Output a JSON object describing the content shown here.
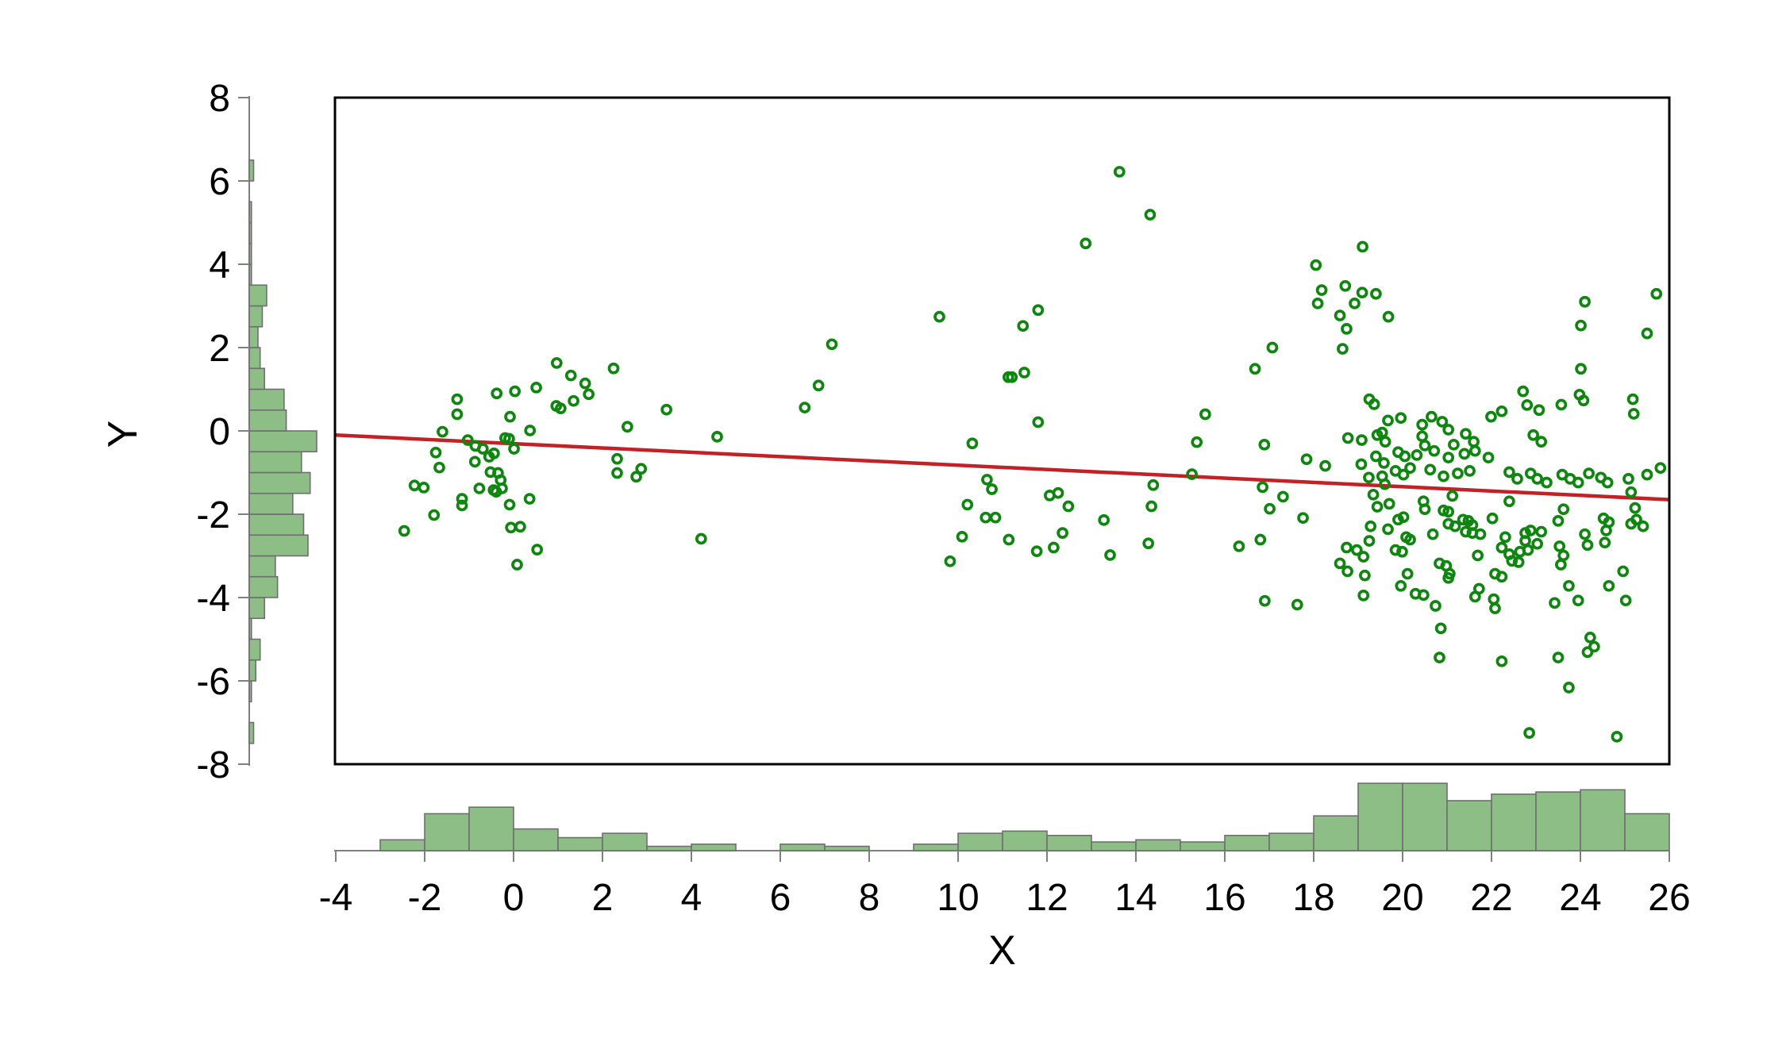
{
  "chart_data": {
    "type": "scatter",
    "subtype": "marginal_plot_with_histograms_and_fit_line",
    "title": "",
    "xlabel": "X",
    "ylabel": "Y",
    "xlim": [
      -4,
      26
    ],
    "ylim": [
      -8,
      8
    ],
    "x_ticks": [
      -4,
      -2,
      0,
      2,
      4,
      6,
      8,
      10,
      12,
      14,
      16,
      18,
      20,
      22,
      24,
      26
    ],
    "y_ticks": [
      -8,
      -6,
      -4,
      -2,
      0,
      2,
      4,
      6,
      8
    ],
    "grid": false,
    "legend": "none",
    "colors": {
      "point_stroke": "#0D870D",
      "fit_line": "#C22126",
      "hist_fill": "#8CBE86",
      "hist_edge": "#6F6F6F",
      "axis_line": "#7F7F7F",
      "plot_border": "#000000",
      "text": "#000000",
      "background": "#FFFFFF"
    },
    "fit_line": {
      "x1": -4,
      "y1": -0.1,
      "x2": 26,
      "y2": -1.65
    },
    "x_histogram": {
      "bin_width": 1,
      "bins_start": -3,
      "counts": [
        5,
        17,
        20,
        10,
        6,
        8,
        2,
        3,
        0,
        3,
        2,
        0,
        3,
        8,
        9,
        7,
        4,
        5,
        4,
        7,
        8,
        16,
        31,
        31,
        23,
        26,
        27,
        28,
        17
      ]
    },
    "y_histogram": {
      "bin_width": 0.5,
      "bins_start": -8,
      "counts": [
        0,
        2,
        0,
        1,
        3,
        5,
        1,
        7,
        13,
        12,
        27,
        25,
        20,
        28,
        24,
        31,
        17,
        16,
        7,
        5,
        4,
        6,
        8,
        1,
        1,
        1,
        1,
        0,
        2
      ]
    },
    "points": [
      [
        0.97,
        1.63
      ],
      [
        2.25,
        1.5
      ],
      [
        1.29,
        1.33
      ],
      [
        1.61,
        1.14
      ],
      [
        1.69,
        0.88
      ],
      [
        0.51,
        1.04
      ],
      [
        -0.38,
        0.9
      ],
      [
        0.03,
        0.95
      ],
      [
        0.96,
        0.6
      ],
      [
        1.06,
        0.54
      ],
      [
        1.35,
        0.72
      ],
      [
        -1.27,
        0.76
      ],
      [
        -1.27,
        0.4
      ],
      [
        3.44,
        0.51
      ],
      [
        -0.08,
        0.34
      ],
      [
        2.56,
        0.1
      ],
      [
        0.37,
        0.01
      ],
      [
        -1.6,
        -0.02
      ],
      [
        -0.19,
        -0.17
      ],
      [
        -0.1,
        -0.19
      ],
      [
        -1.03,
        -0.22
      ],
      [
        -0.86,
        -0.36
      ],
      [
        -0.69,
        -0.43
      ],
      [
        0.01,
        -0.43
      ],
      [
        -0.44,
        -0.54
      ],
      [
        -0.55,
        -0.62
      ],
      [
        -1.75,
        -0.52
      ],
      [
        -0.87,
        -0.74
      ],
      [
        2.33,
        -0.67
      ],
      [
        2.33,
        -1.01
      ],
      [
        2.87,
        -0.91
      ],
      [
        2.76,
        -1.1
      ],
      [
        -1.67,
        -0.88
      ],
      [
        -0.52,
        -0.99
      ],
      [
        -0.35,
        -1.01
      ],
      [
        -0.29,
        -1.18
      ],
      [
        -2.23,
        -1.31
      ],
      [
        -2.02,
        -1.36
      ],
      [
        -0.77,
        -1.38
      ],
      [
        -0.45,
        -1.42
      ],
      [
        -0.39,
        -1.46
      ],
      [
        -0.26,
        -1.38
      ],
      [
        -1.16,
        -1.63
      ],
      [
        -1.16,
        -1.79
      ],
      [
        0.36,
        -1.63
      ],
      [
        -0.09,
        -1.77
      ],
      [
        -1.79,
        -2.02
      ],
      [
        -2.46,
        -2.4
      ],
      [
        -0.06,
        -2.32
      ],
      [
        0.15,
        -2.3
      ],
      [
        0.53,
        -2.85
      ],
      [
        0.08,
        -3.21
      ],
      [
        9.58,
        2.74
      ],
      [
        7.16,
        2.08
      ],
      [
        6.86,
        1.09
      ],
      [
        6.55,
        0.56
      ],
      [
        4.58,
        -0.14
      ],
      [
        10.32,
        -0.3
      ],
      [
        10.65,
        -1.17
      ],
      [
        11.46,
        2.52
      ],
      [
        11.13,
        1.29
      ],
      [
        11.21,
        1.29
      ],
      [
        11.49,
        1.4
      ],
      [
        4.22,
        -2.59
      ],
      [
        10.21,
        -1.77
      ],
      [
        10.76,
        -1.4
      ],
      [
        10.62,
        -2.08
      ],
      [
        10.84,
        -2.08
      ],
      [
        10.09,
        -2.54
      ],
      [
        11.14,
        -2.61
      ],
      [
        9.82,
        -3.13
      ],
      [
        11.77,
        -2.89
      ],
      [
        13.63,
        6.22
      ],
      [
        14.32,
        5.19
      ],
      [
        12.87,
        4.5
      ],
      [
        11.8,
        2.9
      ],
      [
        18.05,
        3.98
      ],
      [
        18.18,
        3.38
      ],
      [
        18.09,
        3.06
      ],
      [
        18.71,
        3.48
      ],
      [
        19.09,
        3.32
      ],
      [
        18.92,
        3.06
      ],
      [
        18.59,
        2.77
      ],
      [
        18.74,
        2.45
      ],
      [
        18.65,
        1.97
      ],
      [
        17.07,
        2.0
      ],
      [
        16.68,
        1.49
      ],
      [
        15.56,
        0.4
      ],
      [
        11.8,
        0.21
      ],
      [
        15.37,
        -0.27
      ],
      [
        16.89,
        -0.33
      ],
      [
        18.77,
        -0.17
      ],
      [
        17.84,
        -0.68
      ],
      [
        18.26,
        -0.84
      ],
      [
        15.26,
        -1.04
      ],
      [
        14.39,
        -1.3
      ],
      [
        16.85,
        -1.35
      ],
      [
        17.01,
        -1.87
      ],
      [
        17.31,
        -1.58
      ],
      [
        12.06,
        -1.55
      ],
      [
        12.25,
        -1.49
      ],
      [
        12.48,
        -1.81
      ],
      [
        13.28,
        -2.14
      ],
      [
        12.35,
        -2.45
      ],
      [
        12.15,
        -2.8
      ],
      [
        13.42,
        -2.98
      ],
      [
        14.28,
        -2.7
      ],
      [
        14.35,
        -1.81
      ],
      [
        17.76,
        -2.09
      ],
      [
        16.32,
        -2.77
      ],
      [
        16.8,
        -2.61
      ],
      [
        16.9,
        -4.08
      ],
      [
        17.63,
        -4.17
      ],
      [
        18.59,
        -3.18
      ],
      [
        18.74,
        -2.8
      ],
      [
        18.76,
        -3.37
      ],
      [
        18.97,
        -2.86
      ],
      [
        19.12,
        -3.02
      ],
      [
        19.15,
        -3.47
      ],
      [
        19.12,
        -3.95
      ],
      [
        19.1,
        4.42
      ],
      [
        19.4,
        3.29
      ],
      [
        19.68,
        2.74
      ],
      [
        24.1,
        3.1
      ],
      [
        25.71,
        3.29
      ],
      [
        24.01,
        2.53
      ],
      [
        25.5,
        2.34
      ],
      [
        24.01,
        1.49
      ],
      [
        19.36,
        0.64
      ],
      [
        19.54,
        -0.04
      ],
      [
        22.71,
        0.95
      ],
      [
        22.8,
        0.62
      ],
      [
        23.07,
        0.5
      ],
      [
        23.57,
        0.63
      ],
      [
        23.98,
        0.87
      ],
      [
        24.07,
        0.73
      ],
      [
        25.18,
        0.76
      ],
      [
        25.2,
        0.41
      ],
      [
        21.99,
        0.34
      ],
      [
        22.23,
        0.47
      ],
      [
        19.25,
        0.76
      ],
      [
        19.67,
        0.25
      ],
      [
        19.96,
        0.31
      ],
      [
        20.44,
        0.15
      ],
      [
        20.65,
        0.34
      ],
      [
        20.89,
        0.22
      ],
      [
        21.03,
        0.03
      ],
      [
        20.44,
        -0.13
      ],
      [
        20.5,
        -0.35
      ],
      [
        19.43,
        -0.1
      ],
      [
        19.61,
        -0.26
      ],
      [
        19.08,
        -0.22
      ],
      [
        21.15,
        -0.33
      ],
      [
        21.42,
        -0.07
      ],
      [
        21.6,
        -0.26
      ],
      [
        21.63,
        -0.48
      ],
      [
        21.39,
        -0.55
      ],
      [
        21.03,
        -0.64
      ],
      [
        20.71,
        -0.48
      ],
      [
        20.32,
        -0.58
      ],
      [
        19.9,
        -0.51
      ],
      [
        20.05,
        -0.61
      ],
      [
        19.4,
        -0.61
      ],
      [
        19.58,
        -0.77
      ],
      [
        19.07,
        -0.8
      ],
      [
        19.84,
        -0.96
      ],
      [
        20.02,
        -1.05
      ],
      [
        20.17,
        -0.89
      ],
      [
        20.62,
        -0.93
      ],
      [
        20.92,
        -1.09
      ],
      [
        21.24,
        -1.02
      ],
      [
        21.51,
        -0.96
      ],
      [
        21.93,
        -0.64
      ],
      [
        22.4,
        -0.99
      ],
      [
        22.58,
        -1.15
      ],
      [
        22.88,
        -1.02
      ],
      [
        23.03,
        -1.15
      ],
      [
        23.24,
        -1.24
      ],
      [
        23.59,
        -1.05
      ],
      [
        23.77,
        -1.15
      ],
      [
        23.95,
        -1.24
      ],
      [
        24.19,
        -1.02
      ],
      [
        24.46,
        -1.12
      ],
      [
        24.61,
        -1.24
      ],
      [
        25.08,
        -1.15
      ],
      [
        25.5,
        -1.05
      ],
      [
        25.8,
        -0.89
      ],
      [
        22.94,
        -0.1
      ],
      [
        23.12,
        -0.26
      ],
      [
        19.24,
        -1.12
      ],
      [
        19.54,
        -1.09
      ],
      [
        19.6,
        -1.28
      ],
      [
        19.34,
        -1.53
      ],
      [
        19.43,
        -1.82
      ],
      [
        19.7,
        -1.75
      ],
      [
        19.28,
        -2.29
      ],
      [
        19.25,
        -2.64
      ],
      [
        19.67,
        -2.36
      ],
      [
        19.9,
        -2.13
      ],
      [
        20.02,
        -2.07
      ],
      [
        20.47,
        -1.69
      ],
      [
        20.5,
        -1.88
      ],
      [
        20.92,
        -1.91
      ],
      [
        21.03,
        -1.94
      ],
      [
        21.12,
        -1.56
      ],
      [
        21.03,
        -2.23
      ],
      [
        21.18,
        -2.29
      ],
      [
        21.36,
        -2.13
      ],
      [
        21.48,
        -2.16
      ],
      [
        21.57,
        -2.26
      ],
      [
        21.42,
        -2.42
      ],
      [
        21.57,
        -2.45
      ],
      [
        21.75,
        -2.48
      ],
      [
        22.02,
        -2.1
      ],
      [
        21.69,
        -2.99
      ],
      [
        20.68,
        -2.48
      ],
      [
        20.08,
        -2.55
      ],
      [
        20.17,
        -2.61
      ],
      [
        19.84,
        -2.86
      ],
      [
        19.99,
        -2.9
      ],
      [
        20.29,
        -3.91
      ],
      [
        20.47,
        -3.94
      ],
      [
        20.74,
        -4.2
      ],
      [
        20.83,
        -3.18
      ],
      [
        20.98,
        -3.24
      ],
      [
        21.06,
        -3.43
      ],
      [
        21.03,
        -3.53
      ],
      [
        20.11,
        -3.43
      ],
      [
        19.96,
        -3.72
      ],
      [
        22.31,
        -2.55
      ],
      [
        22.23,
        -2.8
      ],
      [
        22.08,
        -3.43
      ],
      [
        22.23,
        -3.5
      ],
      [
        22.4,
        -2.96
      ],
      [
        21.63,
        -3.98
      ],
      [
        21.72,
        -3.79
      ],
      [
        22.05,
        -4.04
      ],
      [
        22.08,
        -4.26
      ],
      [
        20.86,
        -4.74
      ],
      [
        20.83,
        -5.44
      ],
      [
        22.23,
        -5.53
      ],
      [
        22.76,
        -2.45
      ],
      [
        22.88,
        -2.39
      ],
      [
        22.76,
        -2.64
      ],
      [
        23.12,
        -2.42
      ],
      [
        23.03,
        -2.71
      ],
      [
        22.64,
        -2.9
      ],
      [
        22.82,
        -2.86
      ],
      [
        22.46,
        -3.12
      ],
      [
        22.61,
        -3.15
      ],
      [
        23.5,
        -2.16
      ],
      [
        23.53,
        -2.77
      ],
      [
        23.62,
        -2.99
      ],
      [
        23.56,
        -3.21
      ],
      [
        23.74,
        -3.72
      ],
      [
        23.95,
        -4.07
      ],
      [
        23.42,
        -4.13
      ],
      [
        23.5,
        -5.44
      ],
      [
        24.1,
        -2.48
      ],
      [
        24.16,
        -2.74
      ],
      [
        24.52,
        -2.1
      ],
      [
        24.64,
        -2.19
      ],
      [
        24.58,
        -2.39
      ],
      [
        24.55,
        -2.68
      ],
      [
        25.14,
        -2.23
      ],
      [
        25.26,
        -2.13
      ],
      [
        25.02,
        -4.07
      ],
      [
        24.22,
        -4.96
      ],
      [
        24.31,
        -5.18
      ],
      [
        24.16,
        -5.31
      ],
      [
        24.96,
        -3.37
      ],
      [
        22.85,
        -7.25
      ],
      [
        24.82,
        -7.34
      ],
      [
        23.74,
        -6.16
      ],
      [
        25.14,
        -1.47
      ],
      [
        25.23,
        -1.85
      ],
      [
        25.41,
        -2.29
      ],
      [
        24.64,
        -3.72
      ],
      [
        23.62,
        -1.88
      ],
      [
        22.4,
        -1.69
      ]
    ]
  }
}
